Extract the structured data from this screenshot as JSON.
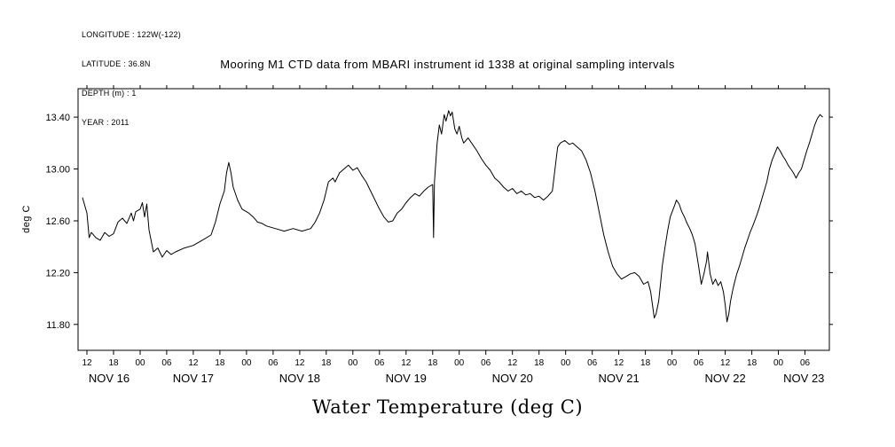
{
  "meta": {
    "longitude": "LONGITUDE : 122W(-122)",
    "latitude": "LATITUDE : 36.8N",
    "depth": "DEPTH (m) : 1",
    "year": "YEAR : 2011"
  },
  "title": "Mooring M1 CTD data from MBARI instrument id 1338 at original sampling intervals",
  "y_axis_label": "deg C",
  "x_axis_title": "Water Temperature (deg C)",
  "chart_data": {
    "type": "line",
    "title": "Mooring M1 CTD data from MBARI instrument id 1338 at original sampling intervals",
    "ylabel": "deg C",
    "xlabel": "Water Temperature (deg C)",
    "line_color": "#000000",
    "grid": false,
    "legend": "none",
    "ylim": [
      11.6,
      13.62
    ],
    "xlim_hours": [
      10,
      179.5
    ],
    "x_units": "hours since NOV 16 2011 00:00",
    "y_ticks": [
      {
        "value": 11.8,
        "label": "11.80"
      },
      {
        "value": 12.2,
        "label": "12.20"
      },
      {
        "value": 12.6,
        "label": "12.60"
      },
      {
        "value": 13.0,
        "label": "13.00"
      },
      {
        "value": 13.4,
        "label": "13.40"
      }
    ],
    "x_tick_start_hour": 12,
    "x_tick_step_hours": 6,
    "x_tick_labels": [
      "12",
      "18",
      "00",
      "06",
      "12",
      "18",
      "00",
      "06",
      "12",
      "18",
      "00",
      "06",
      "12",
      "18",
      "00",
      "06",
      "12",
      "18",
      "00",
      "06",
      "12",
      "18",
      "00",
      "06",
      "12",
      "18",
      "00",
      "06"
    ],
    "date_labels": [
      "NOV 16",
      "NOV 17",
      "NOV 18",
      "NOV 19",
      "NOV 20",
      "NOV 21",
      "NOV 22",
      "NOV 23"
    ],
    "series": [
      {
        "name": "Water Temperature",
        "points": [
          [
            11,
            12.78
          ],
          [
            12,
            12.66
          ],
          [
            12.5,
            12.47
          ],
          [
            13,
            12.51
          ],
          [
            14,
            12.47
          ],
          [
            15,
            12.45
          ],
          [
            16,
            12.51
          ],
          [
            17,
            12.48
          ],
          [
            18,
            12.5
          ],
          [
            19,
            12.59
          ],
          [
            20,
            12.62
          ],
          [
            21,
            12.58
          ],
          [
            22,
            12.66
          ],
          [
            22.5,
            12.6
          ],
          [
            23,
            12.67
          ],
          [
            24,
            12.69
          ],
          [
            24.5,
            12.74
          ],
          [
            25,
            12.63
          ],
          [
            25.5,
            12.73
          ],
          [
            26,
            12.53
          ],
          [
            27,
            12.36
          ],
          [
            28,
            12.39
          ],
          [
            29,
            12.32
          ],
          [
            30,
            12.37
          ],
          [
            31,
            12.34
          ],
          [
            32,
            12.36
          ],
          [
            34,
            12.39
          ],
          [
            36,
            12.41
          ],
          [
            38,
            12.45
          ],
          [
            40,
            12.49
          ],
          [
            41,
            12.59
          ],
          [
            42,
            12.73
          ],
          [
            43,
            12.83
          ],
          [
            43.5,
            12.97
          ],
          [
            44,
            13.05
          ],
          [
            44.5,
            12.97
          ],
          [
            45,
            12.86
          ],
          [
            46,
            12.76
          ],
          [
            47,
            12.69
          ],
          [
            48.5,
            12.66
          ],
          [
            49.5,
            12.63
          ],
          [
            50.5,
            12.59
          ],
          [
            51.5,
            12.58
          ],
          [
            52.5,
            12.56
          ],
          [
            54.5,
            12.54
          ],
          [
            56.5,
            12.52
          ],
          [
            58.5,
            12.54
          ],
          [
            60.5,
            12.52
          ],
          [
            62.5,
            12.54
          ],
          [
            63.5,
            12.59
          ],
          [
            64.5,
            12.66
          ],
          [
            65.5,
            12.76
          ],
          [
            66.5,
            12.9
          ],
          [
            67.5,
            12.93
          ],
          [
            68,
            12.9
          ],
          [
            69,
            12.97
          ],
          [
            70,
            13.0
          ],
          [
            71,
            13.03
          ],
          [
            72,
            12.99
          ],
          [
            73,
            13.01
          ],
          [
            74,
            12.95
          ],
          [
            75,
            12.9
          ],
          [
            76,
            12.83
          ],
          [
            77,
            12.76
          ],
          [
            78,
            12.69
          ],
          [
            79,
            12.63
          ],
          [
            80,
            12.59
          ],
          [
            81,
            12.6
          ],
          [
            82,
            12.66
          ],
          [
            83,
            12.69
          ],
          [
            84,
            12.74
          ],
          [
            85,
            12.78
          ],
          [
            86,
            12.81
          ],
          [
            87,
            12.79
          ],
          [
            88,
            12.83
          ],
          [
            89,
            12.86
          ],
          [
            90,
            12.88
          ],
          [
            90.2,
            12.47
          ],
          [
            90.4,
            12.9
          ],
          [
            91,
            13.2
          ],
          [
            91.5,
            13.34
          ],
          [
            92,
            13.27
          ],
          [
            92.6,
            13.42
          ],
          [
            93,
            13.37
          ],
          [
            93.6,
            13.45
          ],
          [
            94,
            13.41
          ],
          [
            94.4,
            13.44
          ],
          [
            95,
            13.31
          ],
          [
            95.5,
            13.27
          ],
          [
            96,
            13.33
          ],
          [
            96.6,
            13.24
          ],
          [
            97,
            13.2
          ],
          [
            98,
            13.24
          ],
          [
            99,
            13.19
          ],
          [
            100,
            13.14
          ],
          [
            101,
            13.08
          ],
          [
            102,
            13.03
          ],
          [
            103,
            12.99
          ],
          [
            104,
            12.93
          ],
          [
            105,
            12.9
          ],
          [
            106,
            12.86
          ],
          [
            107,
            12.83
          ],
          [
            108,
            12.85
          ],
          [
            109,
            12.81
          ],
          [
            110,
            12.83
          ],
          [
            111,
            12.8
          ],
          [
            112,
            12.81
          ],
          [
            113,
            12.78
          ],
          [
            114,
            12.79
          ],
          [
            115,
            12.76
          ],
          [
            116,
            12.79
          ],
          [
            117,
            12.83
          ],
          [
            117.6,
            13.0
          ],
          [
            118.2,
            13.17
          ],
          [
            118.8,
            13.2
          ],
          [
            119.8,
            13.22
          ],
          [
            120.8,
            13.19
          ],
          [
            121.6,
            13.2
          ],
          [
            122.6,
            13.17
          ],
          [
            123.6,
            13.14
          ],
          [
            124.6,
            13.07
          ],
          [
            125.6,
            12.97
          ],
          [
            126.6,
            12.83
          ],
          [
            127.6,
            12.66
          ],
          [
            128.6,
            12.49
          ],
          [
            129.6,
            12.36
          ],
          [
            130.6,
            12.25
          ],
          [
            131.6,
            12.19
          ],
          [
            132.6,
            12.15
          ],
          [
            133.6,
            12.17
          ],
          [
            134.6,
            12.19
          ],
          [
            135.6,
            12.2
          ],
          [
            136.6,
            12.17
          ],
          [
            137.6,
            12.11
          ],
          [
            138.6,
            12.13
          ],
          [
            139.2,
            12.05
          ],
          [
            139.6,
            11.95
          ],
          [
            140,
            11.85
          ],
          [
            140.4,
            11.88
          ],
          [
            141,
            11.98
          ],
          [
            141.4,
            12.11
          ],
          [
            141.8,
            12.25
          ],
          [
            142.4,
            12.39
          ],
          [
            143,
            12.52
          ],
          [
            143.6,
            12.63
          ],
          [
            144.6,
            12.72
          ],
          [
            145,
            12.76
          ],
          [
            145.6,
            12.73
          ],
          [
            146.2,
            12.67
          ],
          [
            146.8,
            12.63
          ],
          [
            147.4,
            12.58
          ],
          [
            148,
            12.54
          ],
          [
            148.6,
            12.49
          ],
          [
            149.2,
            12.42
          ],
          [
            150,
            12.25
          ],
          [
            150.6,
            12.11
          ],
          [
            151.2,
            12.19
          ],
          [
            151.8,
            12.29
          ],
          [
            152,
            12.36
          ],
          [
            152.6,
            12.19
          ],
          [
            153.2,
            12.11
          ],
          [
            153.8,
            12.15
          ],
          [
            154.4,
            12.1
          ],
          [
            155,
            12.13
          ],
          [
            155.6,
            12.05
          ],
          [
            156,
            11.95
          ],
          [
            156.4,
            11.82
          ],
          [
            156.8,
            11.88
          ],
          [
            157.2,
            11.98
          ],
          [
            157.6,
            12.05
          ],
          [
            158,
            12.11
          ],
          [
            158.6,
            12.19
          ],
          [
            159.2,
            12.25
          ],
          [
            159.8,
            12.32
          ],
          [
            160.4,
            12.39
          ],
          [
            161,
            12.45
          ],
          [
            161.6,
            12.51
          ],
          [
            162.2,
            12.56
          ],
          [
            163,
            12.63
          ],
          [
            163.6,
            12.69
          ],
          [
            164.2,
            12.76
          ],
          [
            164.8,
            12.83
          ],
          [
            165.4,
            12.9
          ],
          [
            166,
            13.0
          ],
          [
            166.6,
            13.07
          ],
          [
            167.2,
            13.12
          ],
          [
            167.8,
            13.17
          ],
          [
            168.4,
            13.14
          ],
          [
            169,
            13.1
          ],
          [
            169.6,
            13.07
          ],
          [
            170.2,
            13.03
          ],
          [
            170.8,
            13.0
          ],
          [
            171.4,
            12.97
          ],
          [
            172,
            12.93
          ],
          [
            172.6,
            12.97
          ],
          [
            173.2,
            13.0
          ],
          [
            173.8,
            13.07
          ],
          [
            174.4,
            13.14
          ],
          [
            175,
            13.2
          ],
          [
            175.6,
            13.27
          ],
          [
            176.2,
            13.34
          ],
          [
            176.8,
            13.39
          ],
          [
            177.4,
            13.42
          ],
          [
            178,
            13.4
          ]
        ]
      }
    ]
  }
}
